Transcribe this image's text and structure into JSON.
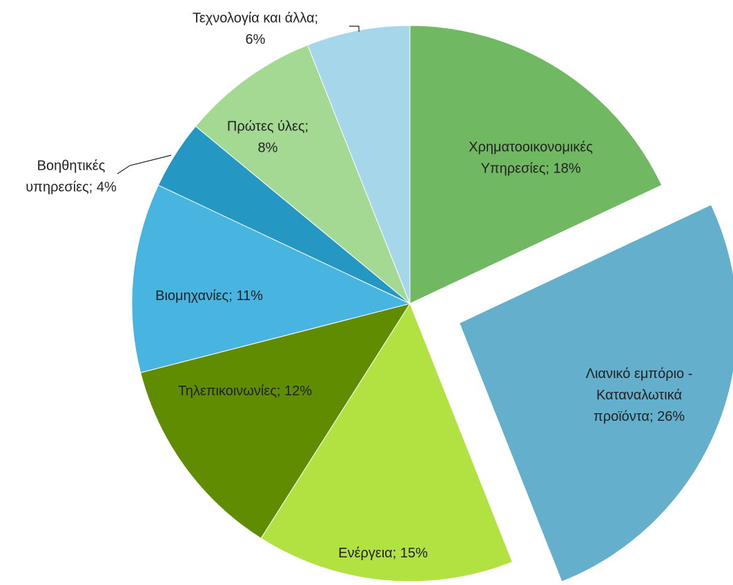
{
  "chart_data": {
    "type": "pie",
    "categories": [
      "Χρηματοοικονομικές\nΥπηρεσίες; 18%",
      "Λιανικό εμπόριο  -\nΚαταναλωτικά\nπροϊόντα; 26%",
      "Ενέργεια; 15%",
      "Τηλεπικοινωνίες; 12%",
      "Βιομηχανίες; 11%",
      "Βοηθητικές\nυπηρεσίες; 4%",
      "Πρώτες ύλες;\n8%",
      "Τεχνολογία και άλλα;\n6%"
    ],
    "values": [
      18,
      26,
      15,
      12,
      11,
      4,
      8,
      6
    ],
    "colors": [
      "#70b861",
      "#64afcc",
      "#b1e242",
      "#5f8c00",
      "#48b5e1",
      "#2597c3",
      "#a4d994",
      "#a6d6ea"
    ],
    "exploded": [
      1
    ]
  }
}
